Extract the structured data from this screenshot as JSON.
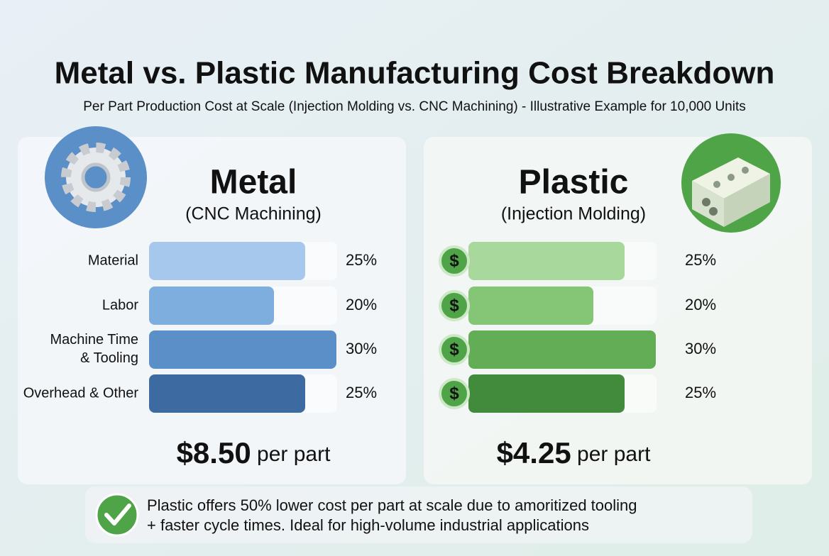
{
  "header": {
    "title": "Metal vs. Plastic Manufacturing Cost Breakdown",
    "subtitle": "Per Part Production Cost at Scale (Injection Molding vs. CNC Machining) - Illustrative Example for 10,000 Units"
  },
  "panels": [
    {
      "title": "Metal",
      "subtitle": "(CNC Machining)",
      "items": [
        {
          "label": "Material",
          "value": 25,
          "value_label": "25%",
          "color": "#a6c8ec"
        },
        {
          "label": "Labor",
          "value": 20,
          "value_label": "20%",
          "color": "#7eaedd"
        },
        {
          "label": "Machine Time & Tooling",
          "value": 30,
          "value_label": "30%",
          "color": "#5b8fc8"
        },
        {
          "label": "Overhead & Other",
          "value": 25,
          "value_label": "25%",
          "color": "#3d6ba1"
        }
      ],
      "price": "$8.50",
      "price_unit": "per part"
    },
    {
      "title": "Plastic",
      "subtitle": "(Injection Molding)",
      "items": [
        {
          "label": "",
          "value": 25,
          "value_label": "25%",
          "color": "#a8d89c"
        },
        {
          "label": "",
          "value": 20,
          "value_label": "20%",
          "color": "#84c676"
        },
        {
          "label": "",
          "value": 30,
          "value_label": "30%",
          "color": "#62ad55"
        },
        {
          "label": "",
          "value": 25,
          "value_label": "25%",
          "color": "#428a3c"
        }
      ],
      "price": "$4.25",
      "price_unit": "per part"
    }
  ],
  "note": {
    "lines": [
      "Plastic offers 50% lower cost per part at scale due to amoritized tooling",
      "+ faster cycle times. Ideal for high-volume industrial applications"
    ]
  }
}
